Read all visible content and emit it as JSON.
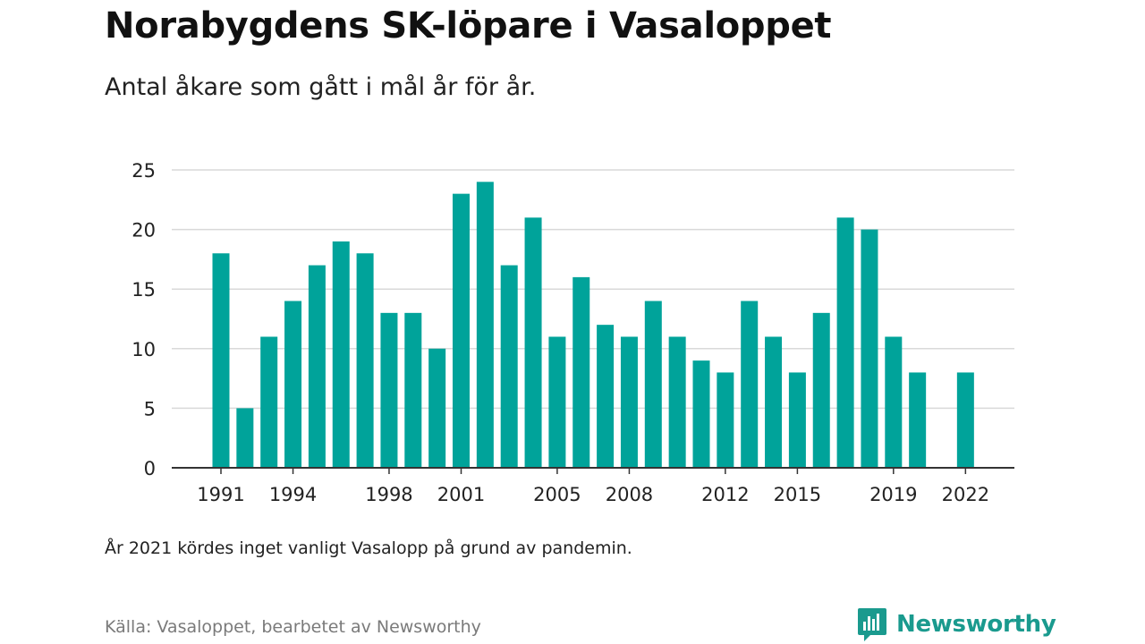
{
  "header": {
    "title": "Norabygdens SK-löpare i Vasaloppet",
    "subtitle": "Antal åkare som gått i mål år för år."
  },
  "footer": {
    "note": "År 2021 kördes inget vanligt Vasalopp på grund av pandemin.",
    "source": "Källa: Vasaloppet, bearbetet av Newsworthy",
    "brand": "Newsworthy",
    "brand_color": "#1a9a8e"
  },
  "chart_data": {
    "type": "bar",
    "title": "Norabygdens SK-löpare i Vasaloppet",
    "subtitle": "Antal åkare som gått i mål år för år.",
    "xlabel": "",
    "ylabel": "",
    "color": "#00a39a",
    "grid": true,
    "ylim": [
      0,
      25
    ],
    "yticks": [
      0,
      5,
      10,
      15,
      20,
      25
    ],
    "xticks": [
      "1991",
      "1994",
      "1998",
      "2001",
      "2005",
      "2008",
      "2012",
      "2015",
      "2019",
      "2022"
    ],
    "categories": [
      "1991",
      "1992",
      "1993",
      "1994",
      "1995",
      "1996",
      "1997",
      "1998",
      "1999",
      "2000",
      "2001",
      "2002",
      "2003",
      "2004",
      "2005",
      "2006",
      "2007",
      "2008",
      "2009",
      "2010",
      "2011",
      "2012",
      "2013",
      "2014",
      "2015",
      "2016",
      "2017",
      "2018",
      "2019",
      "2020",
      "2021",
      "2022"
    ],
    "values": [
      18,
      5,
      11,
      14,
      17,
      19,
      18,
      13,
      13,
      10,
      23,
      24,
      17,
      21,
      11,
      16,
      12,
      11,
      14,
      11,
      9,
      8,
      14,
      11,
      8,
      13,
      21,
      20,
      11,
      8,
      null,
      8
    ]
  }
}
